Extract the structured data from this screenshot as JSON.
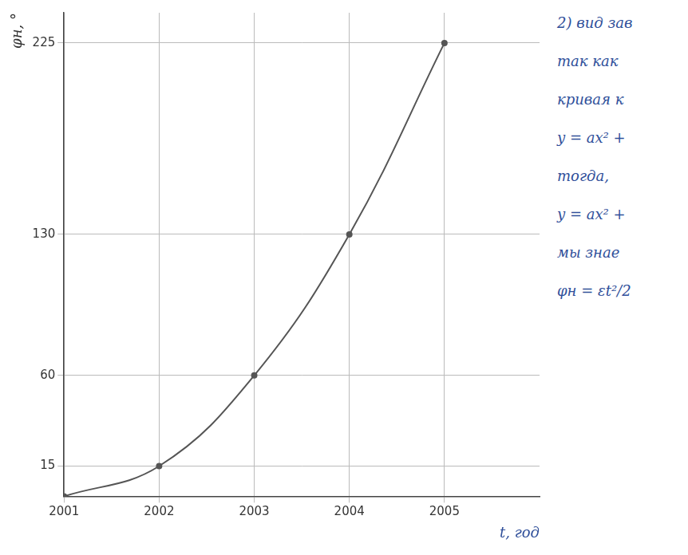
{
  "chart_data": {
    "type": "line",
    "x_label": "t, год",
    "y_label": "φн, °",
    "x": [
      2001,
      2002,
      2003,
      2004,
      2005
    ],
    "values": [
      0,
      15,
      60,
      130,
      225
    ],
    "color": "#555555",
    "marker": "circle",
    "line_style": "solid",
    "xlim": [
      2001,
      2006
    ],
    "xticks": [
      2001,
      2002,
      2003,
      2004,
      2005
    ],
    "ylim": [
      0,
      240
    ],
    "yticks": [
      15,
      60,
      130,
      225
    ],
    "grid": true,
    "annotations": [
      "2) вид зав",
      "так как",
      "кривая к",
      "y = ax² +",
      "тогда,",
      "y = ax² +",
      "мы знае",
      "φн = εt²/2"
    ]
  }
}
